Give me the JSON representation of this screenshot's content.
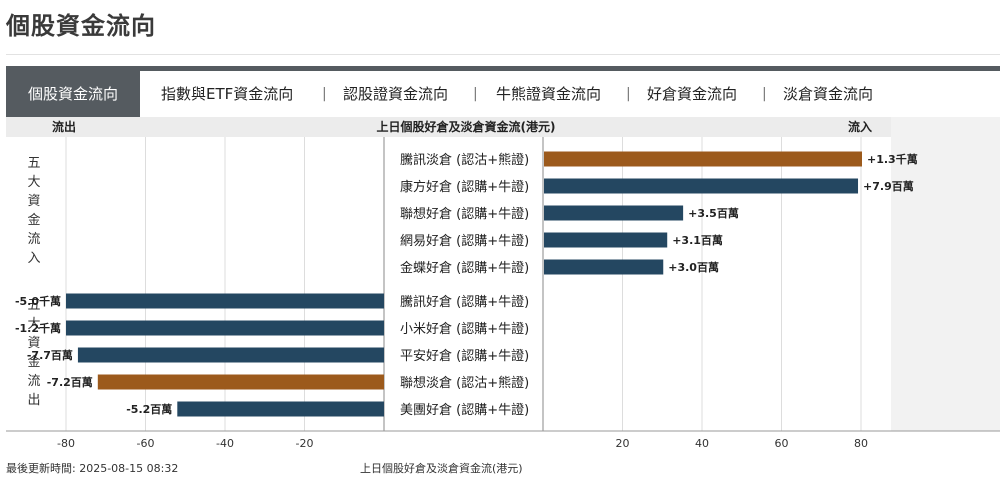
{
  "page": {
    "title": "個股資金流向"
  },
  "tabs": [
    {
      "label": "個股資金流向",
      "active": true
    },
    {
      "label": "指數與ETF資金流向",
      "active": false
    },
    {
      "label": "認股證資金流向",
      "active": false
    },
    {
      "label": "牛熊證資金流向",
      "active": false
    },
    {
      "label": "好倉資金流向",
      "active": false
    },
    {
      "label": "淡倉資金流向",
      "active": false
    }
  ],
  "tab_separator": "|",
  "header": {
    "outflow": "流出",
    "title": "上日個股好倉及淡倉資金流(港元)",
    "inflow": "流入"
  },
  "groups": {
    "inflow_label": "五大資金流入",
    "outflow_label": "五大資金流出"
  },
  "colors": {
    "long": "#244761",
    "short": "#9c5a1c",
    "tab_active": "#555b60",
    "grid": "#dddddd",
    "right_panel": "#f2f2f2"
  },
  "chart_data": {
    "type": "bar",
    "orientation": "horizontal",
    "unit_note": "axis units: 百萬港元",
    "xlim": [
      -80,
      80
    ],
    "x_ticks": [
      -80,
      -60,
      -40,
      -20,
      20,
      40,
      60,
      80
    ],
    "inflow": [
      {
        "label": "騰訊淡倉 (認沽+熊證)",
        "value": 130,
        "text": "+1.3千萬",
        "kind": "short"
      },
      {
        "label": "康方好倉 (認購+牛證)",
        "value": 79,
        "text": "+7.9百萬",
        "kind": "long"
      },
      {
        "label": "聯想好倉 (認購+牛證)",
        "value": 35,
        "text": "+3.5百萬",
        "kind": "long"
      },
      {
        "label": "網易好倉 (認購+牛證)",
        "value": 31,
        "text": "+3.1百萬",
        "kind": "long"
      },
      {
        "label": "金蝶好倉 (認購+牛證)",
        "value": 30,
        "text": "+3.0百萬",
        "kind": "long"
      }
    ],
    "outflow": [
      {
        "label": "騰訊好倉 (認購+牛證)",
        "value": -500,
        "text": "-5.0千萬",
        "kind": "long"
      },
      {
        "label": "小米好倉 (認購+牛證)",
        "value": -120,
        "text": "-1.2千萬",
        "kind": "long"
      },
      {
        "label": "平安好倉 (認購+牛證)",
        "value": -77,
        "text": "-7.7百萬",
        "kind": "long"
      },
      {
        "label": "聯想淡倉 (認沽+熊證)",
        "value": -72,
        "text": "-7.2百萬",
        "kind": "short"
      },
      {
        "label": "美團好倉 (認購+牛證)",
        "value": -52,
        "text": "-5.2百萬",
        "kind": "long"
      }
    ]
  },
  "footer": {
    "updated": "最後更新時間: 2025-08-15 08:32",
    "caption": "上日個股好倉及淡倉資金流(港元)"
  }
}
